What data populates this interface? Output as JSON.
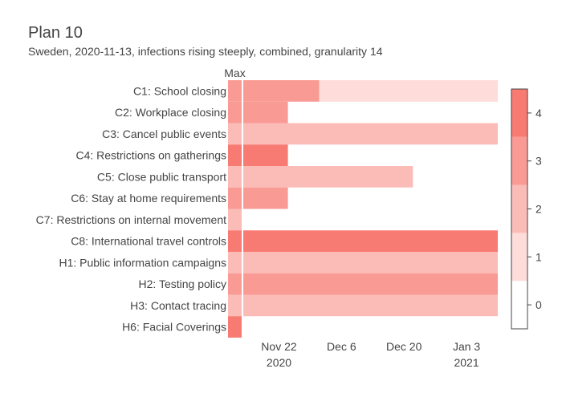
{
  "title": "Plan 10",
  "subtitle": "Sweden, 2020-11-13, infections rising steeply, combined, granularity 14",
  "chart_data": {
    "type": "heatmap",
    "max_column_label": "Max",
    "x_range": [
      "2020-11-14",
      "2021-01-10"
    ],
    "x_ticks": [
      {
        "date": "2020-11-22",
        "label": "Nov 22",
        "sublabel": "2020"
      },
      {
        "date": "2020-12-06",
        "label": "Dec 6",
        "sublabel": ""
      },
      {
        "date": "2020-12-20",
        "label": "Dec 20",
        "sublabel": ""
      },
      {
        "date": "2021-01-03",
        "label": "Jan 3",
        "sublabel": "2021"
      }
    ],
    "colorscale": [
      "#ffffff",
      "#fddcda",
      "#fbbcb8",
      "#f99a95",
      "#f77b73"
    ],
    "colorbar": {
      "min": -0.5,
      "max": 4.5,
      "ticks": [
        0,
        1,
        2,
        3,
        4
      ]
    },
    "rows": [
      {
        "label": "C1: School closing",
        "max": 3,
        "segments": [
          {
            "start": "2020-11-14",
            "end": "2020-12-01",
            "value": 3
          },
          {
            "start": "2020-12-01",
            "end": "2021-01-10",
            "value": 1
          }
        ]
      },
      {
        "label": "C2: Workplace closing",
        "max": 3,
        "segments": [
          {
            "start": "2020-11-14",
            "end": "2020-11-24",
            "value": 3
          }
        ]
      },
      {
        "label": "C3: Cancel public events",
        "max": 2,
        "segments": [
          {
            "start": "2020-11-14",
            "end": "2021-01-10",
            "value": 2
          }
        ]
      },
      {
        "label": "C4: Restrictions on gatherings",
        "max": 4,
        "segments": [
          {
            "start": "2020-11-14",
            "end": "2020-11-24",
            "value": 4
          }
        ]
      },
      {
        "label": "C5: Close public transport",
        "max": 2,
        "segments": [
          {
            "start": "2020-11-14",
            "end": "2020-12-22",
            "value": 2
          }
        ]
      },
      {
        "label": "C6: Stay at home requirements",
        "max": 3,
        "segments": [
          {
            "start": "2020-11-14",
            "end": "2020-11-24",
            "value": 3
          }
        ]
      },
      {
        "label": "C7: Restrictions on internal movement",
        "max": 2,
        "segments": []
      },
      {
        "label": "C8: International travel controls",
        "max": 4,
        "segments": [
          {
            "start": "2020-11-14",
            "end": "2021-01-10",
            "value": 4
          }
        ]
      },
      {
        "label": "H1: Public information campaigns",
        "max": 2,
        "segments": [
          {
            "start": "2020-11-14",
            "end": "2021-01-10",
            "value": 2
          }
        ]
      },
      {
        "label": "H2: Testing policy",
        "max": 3,
        "segments": [
          {
            "start": "2020-11-14",
            "end": "2021-01-10",
            "value": 3
          }
        ]
      },
      {
        "label": "H3: Contact tracing",
        "max": 2,
        "segments": [
          {
            "start": "2020-11-14",
            "end": "2021-01-10",
            "value": 2
          }
        ]
      },
      {
        "label": "H6: Facial Coverings",
        "max": 4,
        "segments": []
      }
    ]
  }
}
